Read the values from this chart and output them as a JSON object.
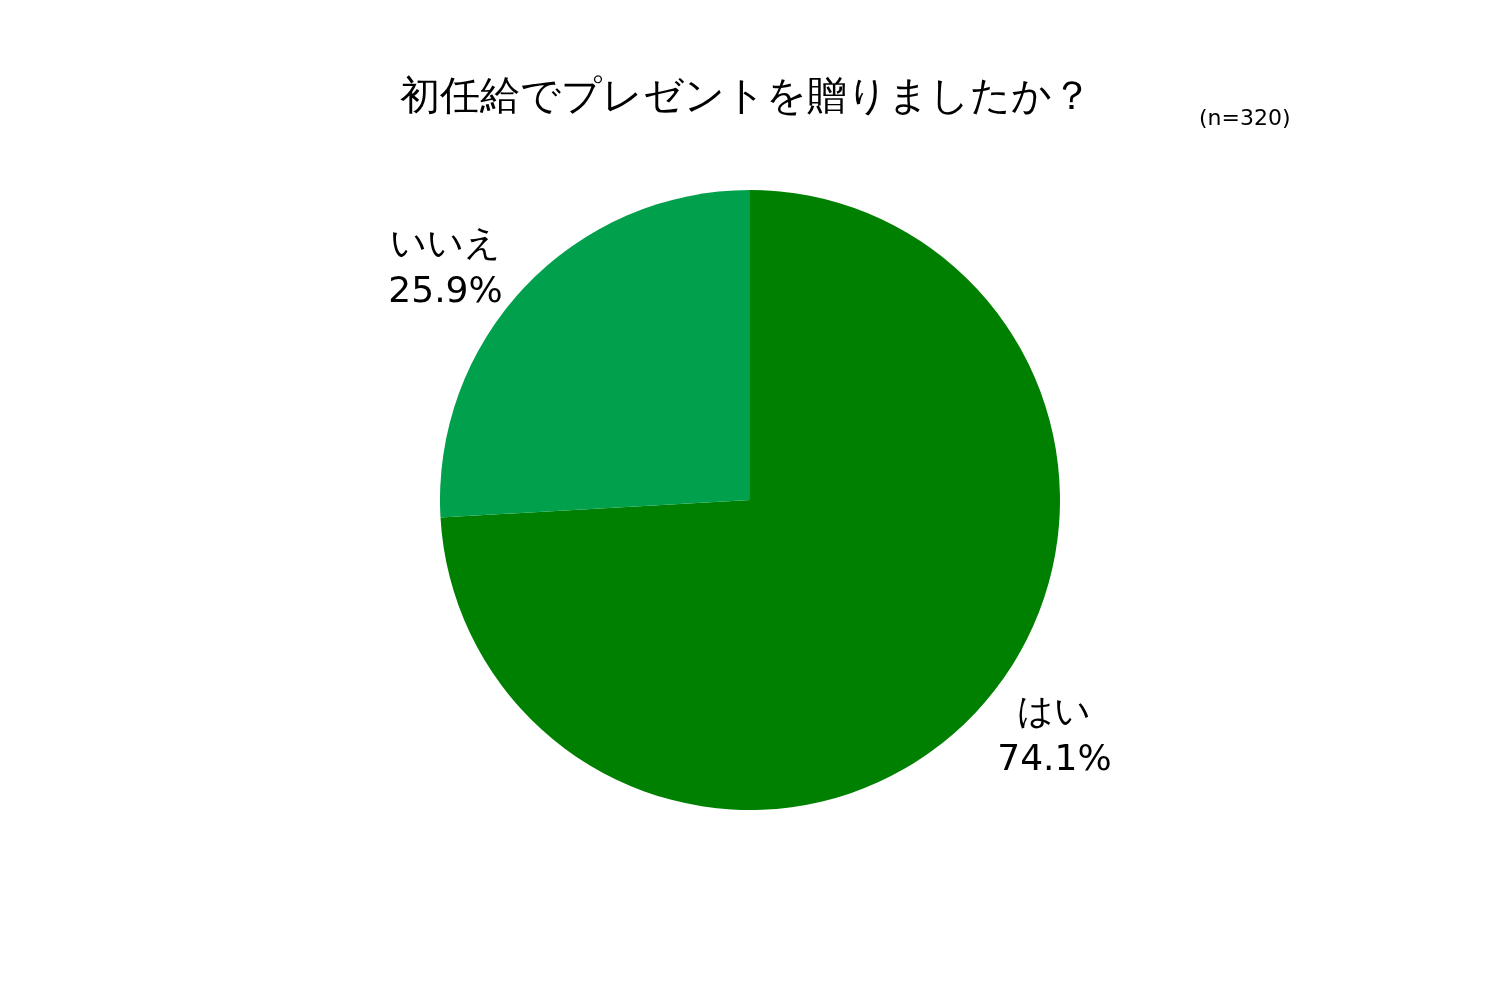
{
  "chart_data": {
    "type": "pie",
    "title": "初任給でプレゼントを贈りましたか？",
    "annotations": [
      "(n=320)"
    ],
    "categories": [
      "はい",
      "いいえ"
    ],
    "values": [
      74.1,
      25.9
    ],
    "value_labels": [
      "74.1%",
      "25.9%"
    ],
    "colors": [
      "#008000",
      "#00a04c"
    ],
    "legend": false
  }
}
